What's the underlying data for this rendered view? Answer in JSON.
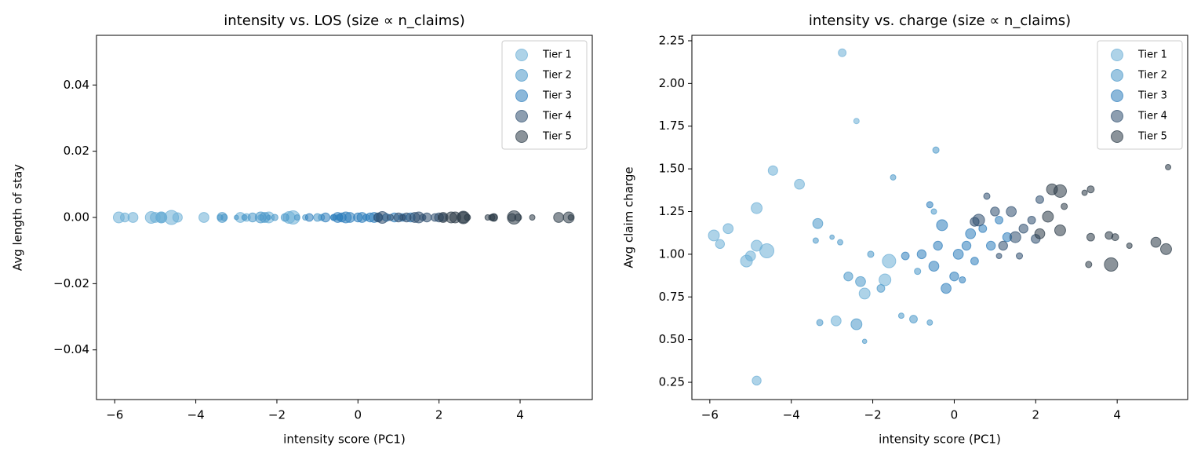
{
  "chart_data": [
    {
      "type": "scatter",
      "title": "intensity vs. LOS (size ∝ n_claims)",
      "x_label": "intensity score (PC1)",
      "y_label": "Avg length of stay",
      "xlim": [
        -6.45,
        5.78
      ],
      "ylim": [
        -0.055,
        0.055
      ],
      "xticks": [
        {
          "value": -6,
          "label": "−6"
        },
        {
          "value": -4,
          "label": "−4"
        },
        {
          "value": -2,
          "label": "−2"
        },
        0,
        2,
        4
      ],
      "yticks": [
        {
          "value": -0.04,
          "label": "−0.04"
        },
        {
          "value": -0.02,
          "label": "−0.02"
        },
        {
          "value": 0,
          "label": "0.00"
        },
        {
          "value": 0.02,
          "label": "0.02"
        },
        0.04
      ],
      "legend": "upper right",
      "series": [
        {
          "name": "Tier 1",
          "color": "#6baed6",
          "x": [
            -5.9,
            -5.75,
            -5.55,
            -5.1,
            -5.0,
            -4.85,
            -4.85,
            -4.85,
            -4.6,
            -4.45,
            -3.8,
            -2.75,
            -2.4,
            -2.9,
            -2.2,
            -1.6,
            -1.7
          ],
          "values": [
            0,
            0,
            0,
            0,
            0,
            0,
            0,
            0,
            0,
            0,
            0,
            0,
            0,
            0,
            0,
            0,
            0
          ],
          "sizes": [
            60,
            40,
            50,
            70,
            50,
            60,
            60,
            40,
            100,
            45,
            50,
            30,
            15,
            50,
            60,
            90,
            70
          ]
        },
        {
          "name": "Tier 2",
          "color": "#4a98c9",
          "x": [
            -3.35,
            -3.4,
            -3.3,
            -3.0,
            -2.8,
            -2.6,
            -2.4,
            -2.3,
            -2.2,
            -2.05,
            -1.8,
            -1.5,
            -1.3,
            -1.0,
            -0.6,
            -0.45,
            -0.5,
            -0.9
          ],
          "values": [
            0,
            0,
            0,
            0,
            0,
            0,
            0,
            0,
            0,
            0,
            0,
            0,
            0,
            0,
            0,
            0,
            0,
            0
          ],
          "sizes": [
            50,
            15,
            20,
            10,
            15,
            40,
            60,
            50,
            10,
            20,
            30,
            15,
            15,
            30,
            15,
            20,
            15,
            20
          ]
        },
        {
          "name": "Tier 3",
          "color": "#2e7ebc",
          "x": [
            -1.2,
            -0.8,
            -0.5,
            -0.4,
            -0.3,
            -0.2,
            0,
            0.1,
            0.3,
            0.4,
            0.5,
            0.7,
            0.9,
            1.1,
            1.3,
            -0.6,
            0.2
          ],
          "values": [
            0,
            0,
            0,
            0,
            0,
            0,
            0,
            0,
            0,
            0,
            0,
            0,
            0,
            0,
            0,
            0,
            0
          ],
          "sizes": [
            30,
            40,
            50,
            40,
            60,
            50,
            40,
            50,
            40,
            50,
            30,
            30,
            40,
            30,
            40,
            20,
            20
          ]
        },
        {
          "name": "Tier 4",
          "color": "#2f4f6f",
          "x": [
            0.5,
            0.6,
            1.0,
            1.2,
            1.5,
            1.7,
            1.9,
            2.0,
            2.1,
            1.4,
            0.8,
            1.6,
            1.1
          ],
          "values": [
            0,
            0,
            0,
            0,
            0,
            0,
            0,
            0,
            0,
            0,
            0,
            0,
            0
          ],
          "sizes": [
            40,
            70,
            40,
            40,
            60,
            40,
            30,
            40,
            30,
            50,
            20,
            20,
            15
          ]
        },
        {
          "name": "Tier 5",
          "color": "#2b3a47",
          "x": [
            2.1,
            2.3,
            2.4,
            2.6,
            2.6,
            2.7,
            3.2,
            3.35,
            3.3,
            3.35,
            3.8,
            3.95,
            3.85,
            4.3,
            4.95,
            5.2,
            5.25
          ],
          "values": [
            0,
            0,
            0,
            0,
            0,
            0,
            0,
            0,
            0,
            0,
            0,
            0,
            0,
            0,
            0,
            0,
            0
          ],
          "sizes": [
            50,
            60,
            60,
            80,
            60,
            20,
            15,
            25,
            20,
            30,
            30,
            25,
            90,
            15,
            50,
            60,
            15
          ]
        }
      ]
    },
    {
      "type": "scatter",
      "title": "intensity vs. charge (size ∝ n_claims)",
      "x_label": "intensity score (PC1)",
      "y_label": "Avg claim charge",
      "xlim": [
        -6.44,
        5.73
      ],
      "ylim": [
        0.149,
        2.282
      ],
      "xticks": [
        {
          "value": -6,
          "label": "−6"
        },
        {
          "value": -4,
          "label": "−4"
        },
        {
          "value": -2,
          "label": "−2"
        },
        0,
        2,
        4
      ],
      "yticks": [
        0.25,
        {
          "value": 0.5,
          "label": "0.50"
        },
        0.75,
        {
          "value": 1,
          "label": "1.00"
        },
        1.25,
        {
          "value": 1.5,
          "label": "1.50"
        },
        1.75,
        {
          "value": 2,
          "label": "2.00"
        },
        2.25
      ],
      "legend": "upper right",
      "series": [
        {
          "name": "Tier 1",
          "color": "#6baed6",
          "x": [
            -5.9,
            -5.75,
            -5.55,
            -5.1,
            -5.0,
            -4.85,
            -4.85,
            -4.85,
            -4.6,
            -4.45,
            -3.8,
            -2.75,
            -2.4,
            -2.9,
            -2.2,
            -1.6,
            -1.7
          ],
          "values": [
            1.11,
            1.06,
            1.15,
            0.96,
            0.99,
            1.27,
            1.05,
            0.26,
            1.02,
            1.49,
            1.41,
            2.18,
            1.78,
            0.61,
            0.77,
            0.96,
            0.85
          ],
          "sizes": [
            60,
            40,
            50,
            70,
            50,
            60,
            60,
            40,
            100,
            45,
            50,
            30,
            15,
            50,
            60,
            90,
            70
          ]
        },
        {
          "name": "Tier 2",
          "color": "#4a98c9",
          "x": [
            -3.35,
            -3.4,
            -3.3,
            -3.0,
            -2.8,
            -2.6,
            -2.4,
            -2.3,
            -2.2,
            -2.05,
            -1.8,
            -1.5,
            -1.3,
            -1.0,
            -0.6,
            -0.45,
            -0.5,
            -0.9
          ],
          "values": [
            1.18,
            1.08,
            0.6,
            1.1,
            1.07,
            0.87,
            0.59,
            0.84,
            0.49,
            1.0,
            0.8,
            1.45,
            0.64,
            0.62,
            0.6,
            1.61,
            1.25,
            0.9
          ],
          "sizes": [
            50,
            15,
            20,
            10,
            15,
            40,
            60,
            50,
            10,
            20,
            30,
            15,
            15,
            30,
            15,
            20,
            15,
            20
          ]
        },
        {
          "name": "Tier 3",
          "color": "#2e7ebc",
          "x": [
            -1.2,
            -0.8,
            -0.5,
            -0.4,
            -0.3,
            -0.2,
            0,
            0.1,
            0.3,
            0.4,
            0.5,
            0.7,
            0.9,
            1.1,
            1.3,
            -0.6,
            0.2
          ],
          "values": [
            0.99,
            1.0,
            0.93,
            1.05,
            1.17,
            0.8,
            0.87,
            1.0,
            1.05,
            1.12,
            0.96,
            1.15,
            1.05,
            1.2,
            1.1,
            1.29,
            0.85
          ],
          "sizes": [
            30,
            40,
            50,
            40,
            60,
            50,
            40,
            50,
            40,
            50,
            30,
            30,
            40,
            30,
            40,
            20,
            20
          ]
        },
        {
          "name": "Tier 4",
          "color": "#2f4f6f",
          "x": [
            0.5,
            0.6,
            1.0,
            1.2,
            1.5,
            1.7,
            1.9,
            2.0,
            2.1,
            1.4,
            0.8,
            1.6,
            1.1
          ],
          "values": [
            1.19,
            1.2,
            1.25,
            1.05,
            1.1,
            1.15,
            1.2,
            1.09,
            1.32,
            1.25,
            1.34,
            0.99,
            0.99
          ],
          "sizes": [
            40,
            70,
            40,
            40,
            60,
            40,
            30,
            40,
            30,
            50,
            20,
            20,
            15
          ]
        },
        {
          "name": "Tier 5",
          "color": "#2b3a47",
          "x": [
            2.1,
            2.3,
            2.4,
            2.6,
            2.6,
            2.7,
            3.2,
            3.35,
            3.3,
            3.35,
            3.8,
            3.95,
            3.85,
            4.3,
            4.95,
            5.2,
            5.25
          ],
          "values": [
            1.12,
            1.22,
            1.38,
            1.37,
            1.14,
            1.28,
            1.36,
            1.38,
            0.94,
            1.1,
            1.11,
            1.1,
            0.94,
            1.05,
            1.07,
            1.03,
            1.51
          ],
          "sizes": [
            50,
            60,
            60,
            80,
            60,
            20,
            15,
            25,
            20,
            30,
            30,
            25,
            90,
            15,
            50,
            60,
            15
          ]
        }
      ]
    }
  ]
}
